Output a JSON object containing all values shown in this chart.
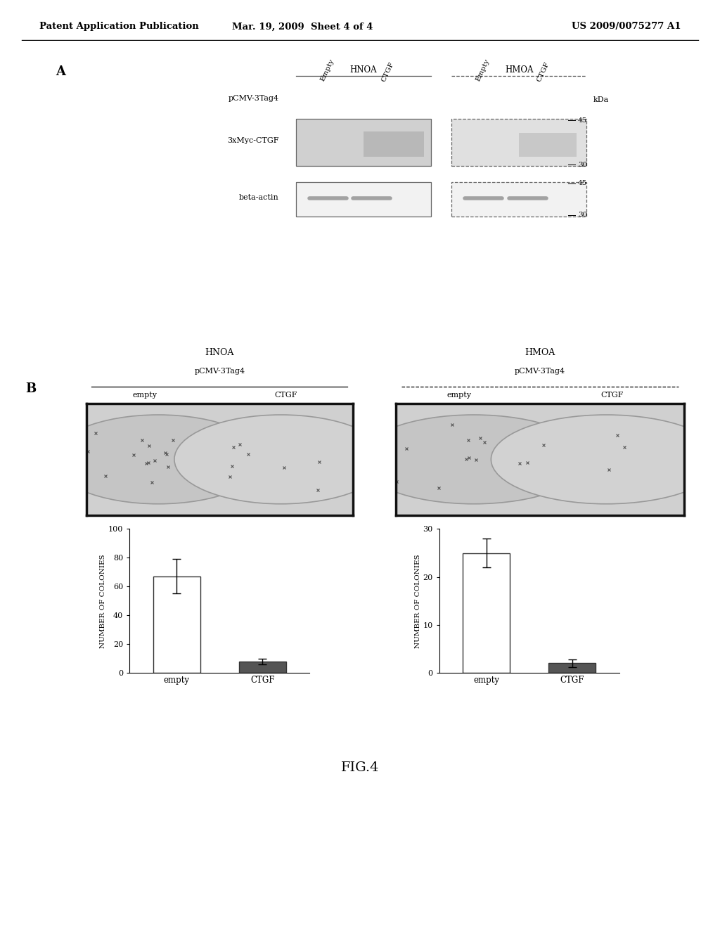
{
  "header_left": "Patent Application Publication",
  "header_mid": "Mar. 19, 2009  Sheet 4 of 4",
  "header_right": "US 2009/0075277 A1",
  "panel_A_label": "A",
  "panel_B_label": "B",
  "figure_label": "FIG.4",
  "background_color": "#ffffff",
  "bar_empty_color": "#ffffff",
  "bar_ctgf_color": "#555555",
  "bar_edge_color": "#333333",
  "ylabel": "NUMBER OF COLONIES",
  "panel_B": {
    "HNOA": {
      "empty_bar": 67,
      "empty_err": 12,
      "ctgf_bar": 8,
      "ctgf_err": 2,
      "ylim": 100,
      "yticks": [
        0,
        20,
        40,
        60,
        80,
        100
      ]
    },
    "HMOA": {
      "empty_bar": 25,
      "empty_err": 3,
      "ctgf_bar": 2,
      "ctgf_err": 0.8,
      "ylim": 30,
      "yticks": [
        0,
        10,
        20,
        30
      ]
    }
  }
}
